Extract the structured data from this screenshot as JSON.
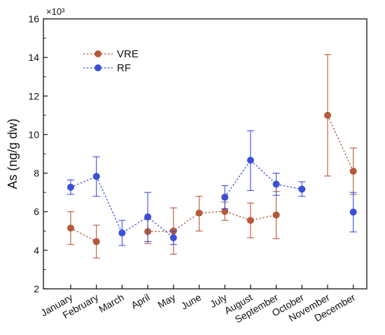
{
  "chart_data": {
    "type": "line",
    "title": "",
    "xlabel": "",
    "ylabel": "As (ng/g dw)",
    "y_multiplier_label": "×10³",
    "ylim": [
      2,
      16
    ],
    "yticks": [
      2,
      4,
      6,
      8,
      10,
      12,
      14,
      16
    ],
    "grid": false,
    "legend_position": "top-left",
    "categories": [
      "January",
      "February",
      "March",
      "April",
      "May",
      "June",
      "July",
      "August",
      "September",
      "October",
      "November",
      "December"
    ],
    "series": [
      {
        "name": "VRE",
        "color": "#b5593a",
        "line_style": "dotted",
        "values": [
          5.15,
          4.45,
          null,
          4.97,
          5.0,
          5.93,
          6.02,
          5.55,
          5.83,
          null,
          11.0,
          8.1
        ],
        "err_low": [
          4.3,
          3.6,
          null,
          4.35,
          3.8,
          5.0,
          5.55,
          4.65,
          4.6,
          null,
          7.85,
          6.9
        ],
        "err_high": [
          6.0,
          5.3,
          null,
          5.6,
          6.2,
          6.8,
          6.5,
          6.45,
          7.05,
          null,
          14.15,
          9.3
        ]
      },
      {
        "name": "RF",
        "color": "#3b4fd8",
        "line_style": "dotted",
        "values": [
          7.27,
          7.83,
          4.9,
          5.73,
          4.65,
          null,
          6.75,
          8.67,
          7.43,
          7.17,
          null,
          5.98
        ],
        "err_low": [
          6.9,
          6.8,
          4.25,
          4.45,
          4.3,
          null,
          6.15,
          7.1,
          6.85,
          6.8,
          null,
          4.95
        ],
        "err_high": [
          7.65,
          8.85,
          5.55,
          7.0,
          5.0,
          null,
          7.35,
          10.2,
          8.0,
          7.55,
          null,
          7.0
        ]
      }
    ]
  }
}
